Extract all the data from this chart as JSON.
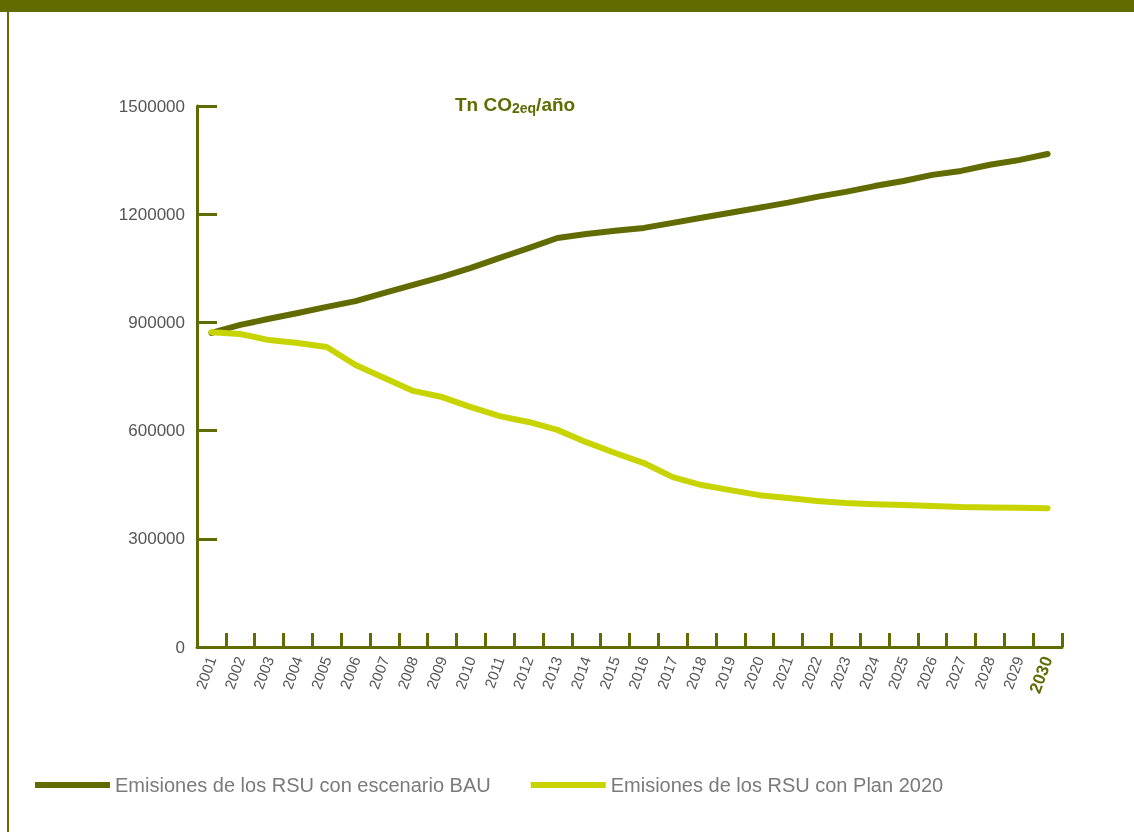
{
  "chart_data": {
    "type": "line",
    "title": "Tn CO$_{2eq}$/año",
    "categories": [
      "2001",
      "2002",
      "2003",
      "2004",
      "2005",
      "2006",
      "2007",
      "2008",
      "2009",
      "2010",
      "2011",
      "2012",
      "2013",
      "2014",
      "2015",
      "2016",
      "2017",
      "2018",
      "2019",
      "2020",
      "2021",
      "2022",
      "2023",
      "2024",
      "2025",
      "2026",
      "2027",
      "2028",
      "2029",
      "2030"
    ],
    "series": [
      {
        "name": "Emisiones de los RSU con escenario BAU",
        "color": "#626b00",
        "values": [
          871000,
          893000,
          910000,
          926000,
          943000,
          959000,
          982000,
          1004000,
          1026000,
          1051000,
          1079000,
          1106000,
          1134000,
          1145000,
          1154000,
          1162000,
          1176000,
          1190000,
          1204000,
          1218000,
          1232000,
          1248000,
          1262000,
          1278000,
          1292000,
          1309000,
          1320000,
          1337000,
          1350000,
          1367000
        ]
      },
      {
        "name": "Emisiones de los RSU con Plan 2020",
        "color": "#c8d400",
        "values": [
          873000,
          868000,
          851000,
          843000,
          832000,
          782000,
          746000,
          710000,
          693000,
          665000,
          640000,
          624000,
          602000,
          568000,
          538000,
          510000,
          471000,
          449000,
          435000,
          421000,
          413000,
          405000,
          399000,
          396000,
          394000,
          391000,
          388000,
          387000,
          386000,
          385000
        ]
      }
    ],
    "ylim": [
      0,
      1500000
    ],
    "yticks": [
      0,
      300000,
      600000,
      900000,
      1200000,
      1500000
    ],
    "grid": false,
    "legend": "bottom",
    "marker": "none",
    "line_style": "solid"
  }
}
